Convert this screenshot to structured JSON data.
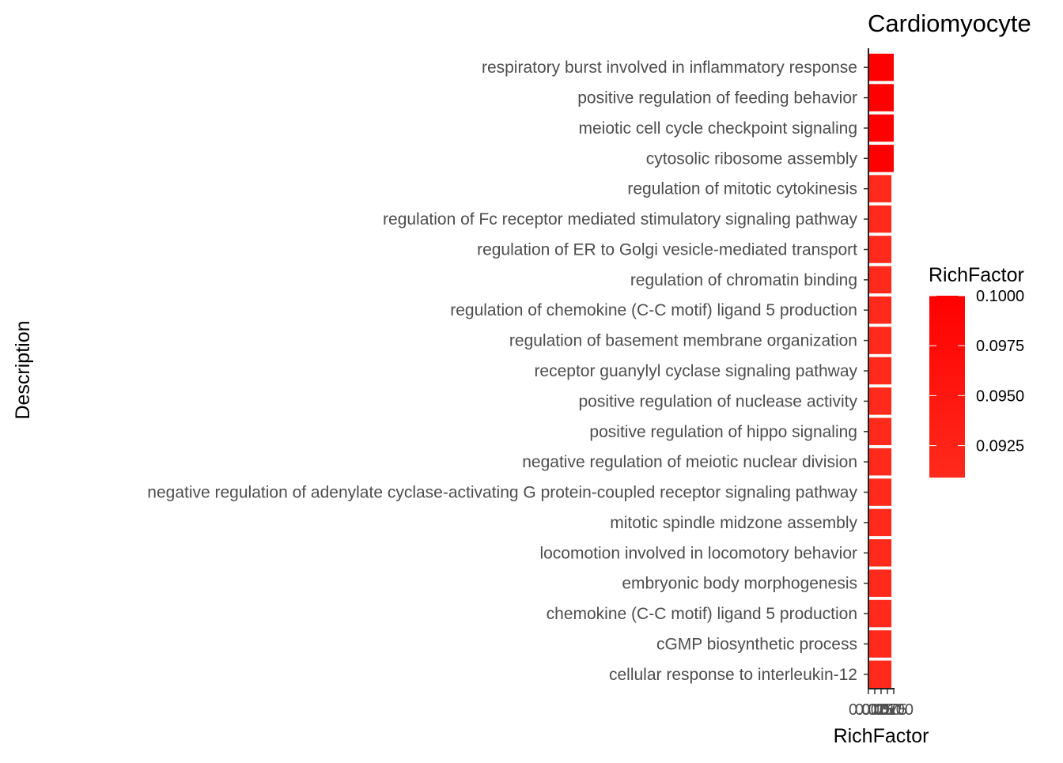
{
  "chart_data": {
    "type": "bar",
    "orientation": "horizontal",
    "title": "Cardiomyocyte",
    "xlabel": "RichFactor",
    "ylabel": "Description",
    "categories": [
      "respiratory burst involved in inflammatory response",
      "positive regulation of feeding behavior",
      "meiotic cell cycle checkpoint signaling",
      "cytosolic ribosome assembly",
      "regulation of mitotic cytokinesis",
      "regulation of Fc receptor mediated stimulatory signaling pathway",
      "regulation of ER to Golgi vesicle-mediated transport",
      "regulation of chromatin binding",
      "regulation of chemokine (C-C motif) ligand 5 production",
      "regulation of basement membrane organization",
      "receptor guanylyl cyclase signaling pathway",
      "positive regulation of nuclease activity",
      "positive regulation of hippo signaling",
      "negative regulation of meiotic nuclear division",
      "negative regulation of adenylate cyclase-activating G protein-coupled receptor signaling pathway",
      "mitotic spindle midzone assembly",
      "locomotion involved in locomotory behavior",
      "embryonic body morphogenesis",
      "chemokine (C-C motif) ligand 5 production",
      "cGMP biosynthetic process",
      "cellular response to interleukin-12"
    ],
    "values": [
      0.1,
      0.1,
      0.1,
      0.1,
      0.0909,
      0.0909,
      0.0909,
      0.0909,
      0.0909,
      0.0909,
      0.0909,
      0.0909,
      0.0909,
      0.0909,
      0.0909,
      0.0909,
      0.0909,
      0.0909,
      0.0909,
      0.0909,
      0.0909
    ],
    "xlim": [
      0,
      0.1
    ],
    "x_ticks": [
      "0.000",
      "0.025",
      "0.050",
      "0.075",
      "0.100"
    ],
    "grid": false,
    "legend": {
      "title": "RichFactor",
      "position": "right",
      "range": [
        0.0909,
        0.1
      ],
      "ticks": [
        {
          "value": 0.1,
          "label": "0.1000"
        },
        {
          "value": 0.0975,
          "label": "0.0975"
        },
        {
          "value": 0.095,
          "label": "0.0950"
        },
        {
          "value": 0.0925,
          "label": "0.0925"
        }
      ],
      "color_low": "#ff2a1c",
      "color_high": "#ff0000"
    }
  }
}
